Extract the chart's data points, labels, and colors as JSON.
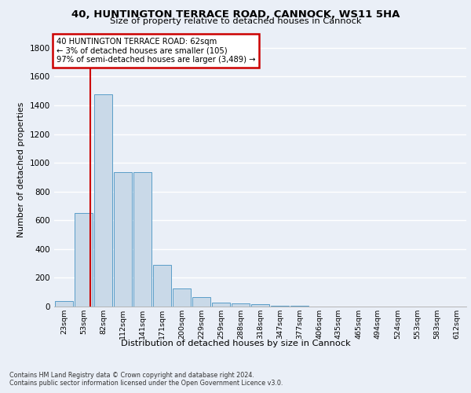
{
  "title1": "40, HUNTINGTON TERRACE ROAD, CANNOCK, WS11 5HA",
  "title2": "Size of property relative to detached houses in Cannock",
  "xlabel": "Distribution of detached houses by size in Cannock",
  "ylabel": "Number of detached properties",
  "footnote1": "Contains HM Land Registry data © Crown copyright and database right 2024.",
  "footnote2": "Contains public sector information licensed under the Open Government Licence v3.0.",
  "annotation_line1": "40 HUNTINGTON TERRACE ROAD: 62sqm",
  "annotation_line2": "← 3% of detached houses are smaller (105)",
  "annotation_line3": "97% of semi-detached houses are larger (3,489) →",
  "bar_labels": [
    "23sqm",
    "53sqm",
    "82sqm",
    "112sqm",
    "141sqm",
    "171sqm",
    "200sqm",
    "229sqm",
    "259sqm",
    "288sqm",
    "318sqm",
    "347sqm",
    "377sqm",
    "406sqm",
    "435sqm",
    "465sqm",
    "494sqm",
    "524sqm",
    "553sqm",
    "583sqm",
    "612sqm"
  ],
  "bar_values": [
    40,
    650,
    1475,
    935,
    935,
    290,
    125,
    65,
    25,
    20,
    15,
    8,
    8,
    0,
    0,
    0,
    0,
    0,
    0,
    0,
    0
  ],
  "bar_color": "#c9d9e8",
  "bar_edge_color": "#5a9dc8",
  "red_line_x": 1.35,
  "ylim": [
    0,
    1900
  ],
  "yticks": [
    0,
    200,
    400,
    600,
    800,
    1000,
    1200,
    1400,
    1600,
    1800
  ],
  "bg_color": "#eaeff7",
  "plot_bg": "#eaeff7",
  "annotation_box_color": "#ffffff",
  "annotation_box_edge": "#cc0000",
  "red_line_color": "#cc0000",
  "grid_color": "#ffffff"
}
